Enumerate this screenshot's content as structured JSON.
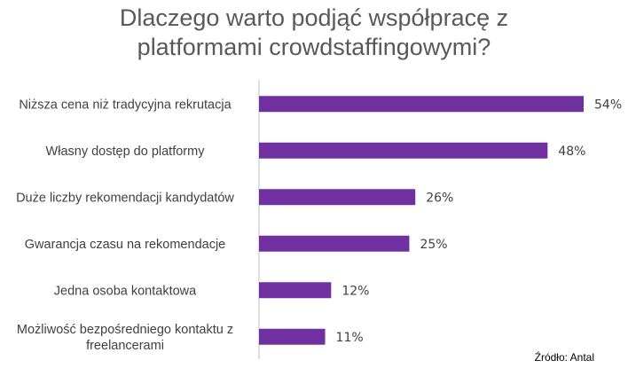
{
  "title_lines": [
    "Dlaczego warto podjąć współpracę z",
    "platformami crowdstaffingowymi?"
  ],
  "source": "Źródło: Antal",
  "colors": {
    "bar": "#7030A0",
    "axis": "#BFBFBF",
    "text": "#404040",
    "title": "#595959"
  },
  "chart_data": {
    "type": "bar",
    "orientation": "horizontal",
    "title": "Dlaczego warto podjąć współpracę z platformami crowdstaffingowymi?",
    "categories": [
      [
        "Niższa cena niż tradycyjna rekrutacja"
      ],
      [
        "Własny dostęp do platformy"
      ],
      [
        "Duże liczby rekomendacji kandydatów"
      ],
      [
        "Gwarancja czasu na rekomendacje"
      ],
      [
        "Jedna osoba kontaktowa"
      ],
      [
        "Możliwość bezpośredniego kontaktu z",
        "freelancerami"
      ]
    ],
    "values": [
      54,
      48,
      26,
      25,
      12,
      11
    ],
    "value_labels": [
      "54%",
      "48%",
      "26%",
      "25%",
      "12%",
      "11%"
    ],
    "xlim": [
      0,
      60
    ],
    "grid": false,
    "legend": "none"
  }
}
